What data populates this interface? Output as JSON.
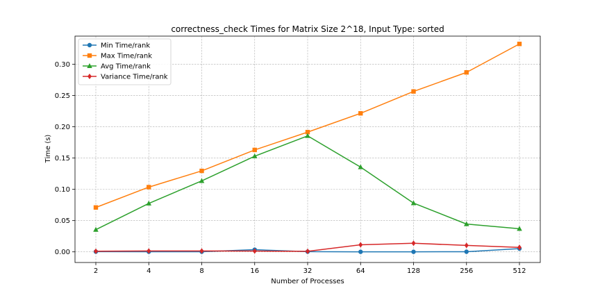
{
  "chart_data": {
    "type": "line",
    "title": "correctness_check Times for Matrix Size 2^18, Input Type: sorted",
    "xlabel": "Number of Processes",
    "ylabel": "Time (s)",
    "categories": [
      "2",
      "4",
      "8",
      "16",
      "32",
      "64",
      "128",
      "256",
      "512"
    ],
    "yticks": [
      "0.00",
      "0.05",
      "0.10",
      "0.15",
      "0.20",
      "0.25",
      "0.30"
    ],
    "ylim": [
      -0.017,
      0.345
    ],
    "grid": true,
    "legend_position": "upper left",
    "series": [
      {
        "name": "Min Time/rank",
        "color": "#1f77b4",
        "marker": "circle",
        "values": [
          0.0003,
          0.0002,
          0.0002,
          0.0035,
          0.0003,
          0.0001,
          0.0001,
          0.0002,
          0.0052
        ]
      },
      {
        "name": "Max Time/rank",
        "color": "#ff7f0e",
        "marker": "square",
        "values": [
          0.071,
          0.1035,
          0.1295,
          0.163,
          0.1915,
          0.2215,
          0.2565,
          0.287,
          0.3325
        ]
      },
      {
        "name": "Avg Time/rank",
        "color": "#2ca02c",
        "marker": "triangle",
        "values": [
          0.0355,
          0.0775,
          0.1135,
          0.153,
          0.1855,
          0.1355,
          0.078,
          0.0445,
          0.037
        ]
      },
      {
        "name": "Variance Time/rank",
        "color": "#d62728",
        "marker": "diamond",
        "values": [
          0.001,
          0.0015,
          0.0015,
          0.0013,
          0.0009,
          0.0113,
          0.0138,
          0.0103,
          0.0071
        ]
      }
    ]
  }
}
